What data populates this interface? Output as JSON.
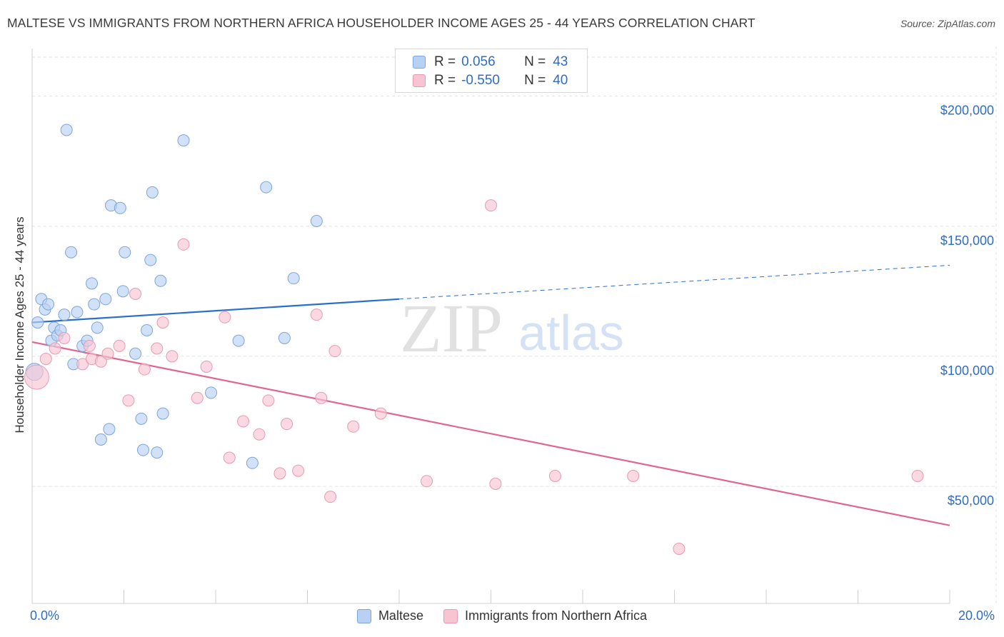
{
  "title": "MALTESE VS IMMIGRANTS FROM NORTHERN AFRICA HOUSEHOLDER INCOME AGES 25 - 44 YEARS CORRELATION CHART",
  "source": "Source: ZipAtlas.com",
  "watermark": {
    "zip": "ZIP",
    "atlas": "atlas"
  },
  "legend": {
    "r_label": "R =",
    "n_label": "N =",
    "series": [
      {
        "name": "Maltese",
        "r": "0.056",
        "n": "43",
        "fill": "#b8d1f3",
        "stroke": "#7ea4dc"
      },
      {
        "name": "Immigrants from Northern Africa",
        "r": "-0.550",
        "n": "40",
        "fill": "#f8c4d4",
        "stroke": "#e79ab2"
      }
    ]
  },
  "chart_data": {
    "type": "scatter",
    "title": "MALTESE VS IMMIGRANTS FROM NORTHERN AFRICA HOUSEHOLDER INCOME AGES 25 - 44 YEARS CORRELATION CHART",
    "xlabel": "",
    "ylabel": "Householder Income Ages 25 - 44 years",
    "xlim": [
      0,
      20
    ],
    "ylim": [
      5000,
      215000
    ],
    "x_tick_labels": [
      "0.0%",
      "20.0%"
    ],
    "y_ticks": [
      50000,
      100000,
      150000,
      200000
    ],
    "y_tick_labels": [
      "$50,000",
      "$100,000",
      "$150,000",
      "$200,000"
    ],
    "grid": true,
    "legend_position": "top-center",
    "series": [
      {
        "name": "Maltese",
        "color": "#4a85d6",
        "points": [
          [
            0.05,
            94000
          ],
          [
            0.12,
            113000
          ],
          [
            0.2,
            122000
          ],
          [
            0.28,
            118000
          ],
          [
            0.35,
            120000
          ],
          [
            0.42,
            106000
          ],
          [
            0.48,
            111000
          ],
          [
            0.55,
            108000
          ],
          [
            0.62,
            110000
          ],
          [
            0.7,
            116000
          ],
          [
            0.75,
            187000
          ],
          [
            0.85,
            140000
          ],
          [
            0.9,
            97000
          ],
          [
            0.98,
            117000
          ],
          [
            1.1,
            104000
          ],
          [
            1.2,
            106000
          ],
          [
            1.3,
            128000
          ],
          [
            1.35,
            120000
          ],
          [
            1.42,
            111000
          ],
          [
            1.5,
            68000
          ],
          [
            1.6,
            122000
          ],
          [
            1.68,
            72000
          ],
          [
            1.72,
            158000
          ],
          [
            1.92,
            157000
          ],
          [
            1.98,
            125000
          ],
          [
            2.02,
            140000
          ],
          [
            2.25,
            101000
          ],
          [
            2.38,
            76000
          ],
          [
            2.42,
            64000
          ],
          [
            2.5,
            110000
          ],
          [
            2.58,
            137000
          ],
          [
            2.62,
            163000
          ],
          [
            2.72,
            63000
          ],
          [
            2.8,
            129000
          ],
          [
            2.85,
            78000
          ],
          [
            3.3,
            183000
          ],
          [
            3.9,
            86000
          ],
          [
            4.5,
            106000
          ],
          [
            4.8,
            59000
          ],
          [
            5.1,
            165000
          ],
          [
            5.5,
            107000
          ],
          [
            5.7,
            130000
          ],
          [
            6.2,
            152000
          ]
        ],
        "trend": {
          "x": [
            0,
            8
          ],
          "y": [
            113000,
            122000
          ]
        },
        "trend_extension": {
          "x": [
            8,
            20
          ],
          "y": [
            122000,
            135000
          ]
        }
      },
      {
        "name": "Immigrants from Northern Africa",
        "color": "#e0668f",
        "points": [
          [
            0.1,
            92000
          ],
          [
            0.3,
            99000
          ],
          [
            0.5,
            103000
          ],
          [
            0.7,
            107000
          ],
          [
            1.1,
            97000
          ],
          [
            1.25,
            104000
          ],
          [
            1.3,
            99000
          ],
          [
            1.5,
            98000
          ],
          [
            1.65,
            101000
          ],
          [
            1.9,
            104000
          ],
          [
            2.1,
            83000
          ],
          [
            2.25,
            124000
          ],
          [
            2.45,
            95000
          ],
          [
            2.72,
            103000
          ],
          [
            2.85,
            113000
          ],
          [
            3.05,
            100000
          ],
          [
            3.3,
            143000
          ],
          [
            3.6,
            84000
          ],
          [
            3.8,
            96000
          ],
          [
            4.2,
            115000
          ],
          [
            4.3,
            61000
          ],
          [
            4.6,
            75000
          ],
          [
            4.95,
            70000
          ],
          [
            5.15,
            83000
          ],
          [
            5.4,
            55000
          ],
          [
            5.55,
            74000
          ],
          [
            5.8,
            56000
          ],
          [
            6.2,
            116000
          ],
          [
            6.3,
            84000
          ],
          [
            6.5,
            46000
          ],
          [
            6.6,
            102000
          ],
          [
            7.0,
            73000
          ],
          [
            7.6,
            78000
          ],
          [
            8.6,
            52000
          ],
          [
            10.0,
            158000
          ],
          [
            10.1,
            51000
          ],
          [
            11.4,
            54000
          ],
          [
            13.1,
            54000
          ],
          [
            14.1,
            26000
          ],
          [
            19.3,
            54000
          ]
        ],
        "trend": {
          "x": [
            0,
            20
          ],
          "y": [
            105500,
            35000
          ]
        }
      }
    ]
  }
}
